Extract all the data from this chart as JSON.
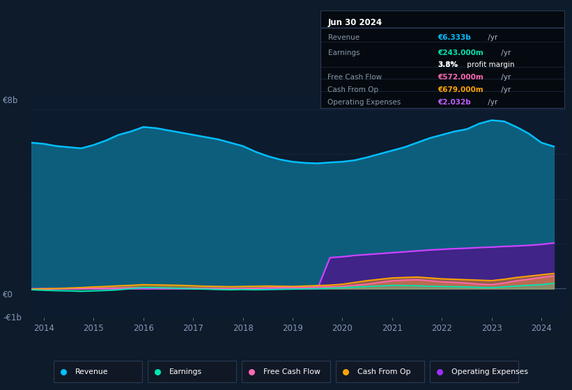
{
  "bg_color": "#0d1b2a",
  "plot_bg_color": "#0d1b2e",
  "grid_color": "#1a2c44",
  "title_box": {
    "date": "Jun 30 2024",
    "rows": [
      {
        "label": "Revenue",
        "value": "€6.333b",
        "unit": " /yr",
        "color": "#00bfff"
      },
      {
        "label": "Earnings",
        "value": "€243.000m",
        "unit": " /yr",
        "color": "#00e5b0"
      },
      {
        "label": "",
        "value": "3.8%",
        "unit": " profit margin",
        "color": "#ffffff"
      },
      {
        "label": "Free Cash Flow",
        "value": "€572.000m",
        "unit": " /yr",
        "color": "#ff69b4"
      },
      {
        "label": "Cash From Op",
        "value": "€679.000m",
        "unit": " /yr",
        "color": "#ffa500"
      },
      {
        "label": "Operating Expenses",
        "value": "€2.032b",
        "unit": " /yr",
        "color": "#bf5fff"
      }
    ]
  },
  "years": [
    2013.75,
    2014.0,
    2014.25,
    2014.5,
    2014.75,
    2015.0,
    2015.25,
    2015.5,
    2015.75,
    2016.0,
    2016.25,
    2016.5,
    2016.75,
    2017.0,
    2017.25,
    2017.5,
    2017.75,
    2018.0,
    2018.25,
    2018.5,
    2018.75,
    2019.0,
    2019.25,
    2019.5,
    2019.75,
    2020.0,
    2020.25,
    2020.5,
    2020.75,
    2021.0,
    2021.25,
    2021.5,
    2021.75,
    2022.0,
    2022.25,
    2022.5,
    2022.75,
    2023.0,
    2023.25,
    2023.5,
    2023.75,
    2024.0,
    2024.25
  ],
  "revenue": [
    6.5,
    6.45,
    6.35,
    6.3,
    6.25,
    6.4,
    6.6,
    6.85,
    7.0,
    7.2,
    7.15,
    7.05,
    6.95,
    6.85,
    6.75,
    6.65,
    6.5,
    6.35,
    6.1,
    5.9,
    5.75,
    5.65,
    5.6,
    5.58,
    5.62,
    5.65,
    5.72,
    5.85,
    6.0,
    6.15,
    6.3,
    6.5,
    6.7,
    6.85,
    7.0,
    7.1,
    7.35,
    7.5,
    7.45,
    7.2,
    6.9,
    6.5,
    6.33
  ],
  "earnings": [
    -0.05,
    -0.07,
    -0.09,
    -0.1,
    -0.12,
    -0.1,
    -0.08,
    -0.05,
    0.0,
    0.05,
    0.04,
    0.03,
    0.01,
    -0.01,
    -0.02,
    -0.04,
    -0.05,
    -0.04,
    -0.05,
    -0.04,
    -0.03,
    -0.02,
    -0.01,
    0.0,
    0.02,
    0.04,
    0.07,
    0.1,
    0.12,
    0.15,
    0.14,
    0.13,
    0.11,
    0.1,
    0.09,
    0.08,
    0.06,
    0.05,
    0.08,
    0.12,
    0.15,
    0.18,
    0.243
  ],
  "free_cash": [
    -0.04,
    -0.03,
    -0.02,
    -0.01,
    0.0,
    0.01,
    0.02,
    0.03,
    0.04,
    0.05,
    0.04,
    0.03,
    0.02,
    0.02,
    0.01,
    0.0,
    -0.01,
    0.0,
    0.02,
    0.04,
    0.05,
    0.05,
    0.06,
    0.07,
    0.08,
    0.1,
    0.15,
    0.2,
    0.28,
    0.35,
    0.38,
    0.4,
    0.35,
    0.3,
    0.28,
    0.25,
    0.2,
    0.18,
    0.25,
    0.35,
    0.42,
    0.5,
    0.572
  ],
  "cash_from_op": [
    -0.02,
    0.0,
    0.01,
    0.03,
    0.05,
    0.08,
    0.1,
    0.13,
    0.15,
    0.18,
    0.17,
    0.16,
    0.15,
    0.13,
    0.11,
    0.1,
    0.09,
    0.1,
    0.11,
    0.12,
    0.11,
    0.1,
    0.12,
    0.14,
    0.16,
    0.2,
    0.28,
    0.36,
    0.42,
    0.48,
    0.5,
    0.52,
    0.48,
    0.44,
    0.42,
    0.4,
    0.38,
    0.36,
    0.42,
    0.5,
    0.56,
    0.62,
    0.679
  ],
  "op_expenses": [
    0,
    0,
    0,
    0,
    0,
    0,
    0,
    0,
    0,
    0,
    0,
    0,
    0,
    0,
    0,
    0,
    0,
    0,
    0,
    0,
    0,
    0,
    0,
    0,
    1.38,
    1.42,
    1.48,
    1.52,
    1.56,
    1.6,
    1.64,
    1.68,
    1.72,
    1.75,
    1.78,
    1.8,
    1.83,
    1.85,
    1.88,
    1.9,
    1.93,
    1.97,
    2.032
  ],
  "xticks": [
    2014,
    2015,
    2016,
    2017,
    2018,
    2019,
    2020,
    2021,
    2022,
    2023,
    2024
  ],
  "xlim": [
    2013.75,
    2024.5
  ],
  "ylim": [
    -1.3,
    8.6
  ],
  "ylabel_top": "€8b",
  "ylabel_zero": "€0",
  "ylabel_neg": "-€1b",
  "revenue_color": "#00bfff",
  "revenue_fill_color": "#0d6a8c",
  "earnings_color": "#00e5b0",
  "free_cash_color": "#ff69b4",
  "cash_from_op_color": "#ffa500",
  "op_expenses_line_color": "#cc44ff",
  "op_expenses_fill_color": "#4a1a8a",
  "legend_items": [
    {
      "label": "Revenue",
      "color": "#00bfff"
    },
    {
      "label": "Earnings",
      "color": "#00e5b0"
    },
    {
      "label": "Free Cash Flow",
      "color": "#ff69b4"
    },
    {
      "label": "Cash From Op",
      "color": "#ffa500"
    },
    {
      "label": "Operating Expenses",
      "color": "#9b30ff"
    }
  ]
}
